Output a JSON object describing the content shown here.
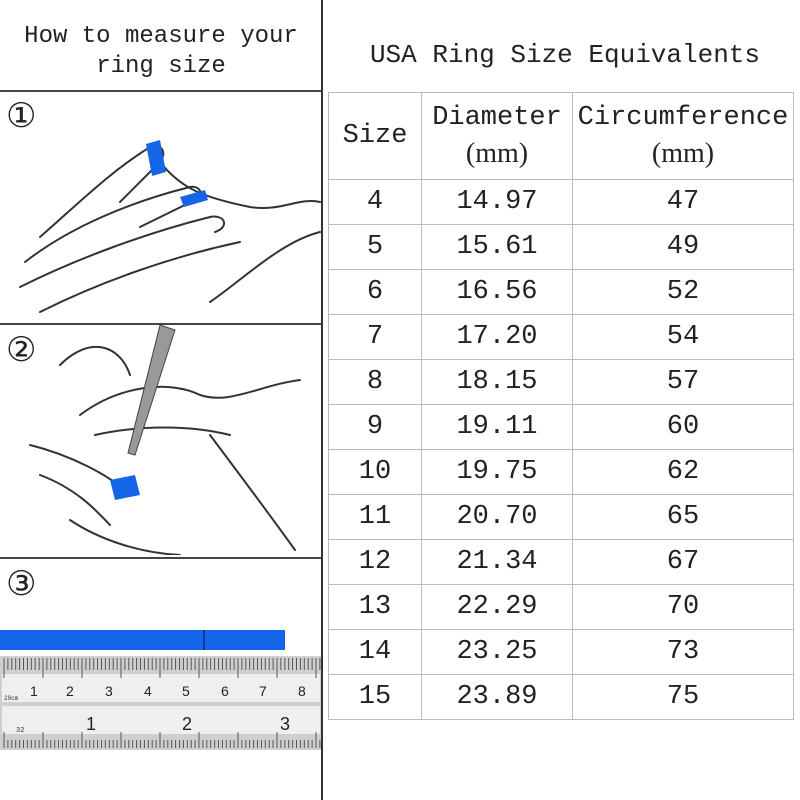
{
  "left_panel": {
    "heading_line1": "How to measure your",
    "heading_line2": "ring size",
    "steps": [
      "①",
      "②",
      "③"
    ],
    "ruler_top_labels": [
      "1",
      "2",
      "3",
      "4",
      "5",
      "6",
      "7",
      "8"
    ],
    "ruler_top_unit": "20cm",
    "ruler_bottom_labels": [
      "1",
      "2",
      "3"
    ],
    "ruler_bottom_unit": "32",
    "accent_color": "#1565e8"
  },
  "table": {
    "title": "USA Ring Size Equivalents",
    "headers": [
      {
        "label": "Size",
        "unit": ""
      },
      {
        "label": "Diameter",
        "unit": "(mm)"
      },
      {
        "label": "Circumference",
        "unit": "(mm)"
      }
    ],
    "rows": [
      [
        "4",
        "14.97",
        "47"
      ],
      [
        "5",
        "15.61",
        "49"
      ],
      [
        "6",
        "16.56",
        "52"
      ],
      [
        "7",
        "17.20",
        "54"
      ],
      [
        "8",
        "18.15",
        "57"
      ],
      [
        "9",
        "19.11",
        "60"
      ],
      [
        "10",
        "19.75",
        "62"
      ],
      [
        "11",
        "20.70",
        "65"
      ],
      [
        "12",
        "21.34",
        "67"
      ],
      [
        "13",
        "22.29",
        "70"
      ],
      [
        "14",
        "23.25",
        "73"
      ],
      [
        "15",
        "23.89",
        "75"
      ]
    ]
  }
}
